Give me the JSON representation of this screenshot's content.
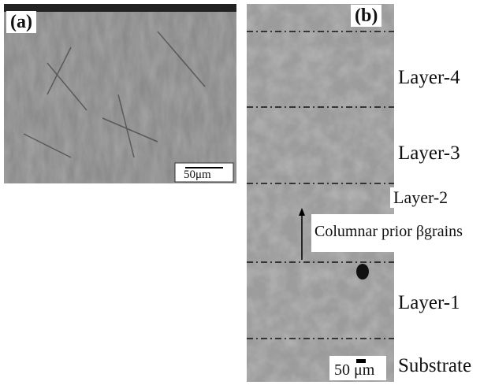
{
  "panels": [
    {
      "label": "(a)",
      "scale_bar": "50μm"
    },
    {
      "label": "(b)",
      "scale_bar": "50 μm",
      "layers": [
        "Layer-4",
        "Layer-3",
        "Layer-2",
        "Layer-1",
        "Substrate"
      ],
      "annotation": "Columnar prior βgrains"
    }
  ]
}
